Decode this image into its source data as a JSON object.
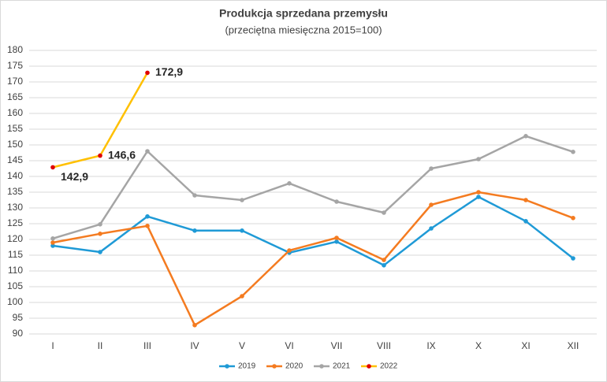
{
  "chart_data": {
    "type": "line",
    "title": "Produkcja sprzedana przemysłu",
    "subtitle": "(przeciętna miesięczna 2015=100)",
    "categories": [
      "I",
      "II",
      "III",
      "IV",
      "V",
      "VI",
      "VII",
      "VIII",
      "IX",
      "X",
      "XI",
      "XII"
    ],
    "series": [
      {
        "name": "2019",
        "color": "#1f9ad6",
        "values": [
          118,
          116,
          127.3,
          122.8,
          122.8,
          115.8,
          119.3,
          111.8,
          123.5,
          133.5,
          125.8,
          114
        ]
      },
      {
        "name": "2020",
        "color": "#f47b20",
        "values": [
          119,
          121.8,
          124.3,
          92.8,
          102,
          116.5,
          120.5,
          113.5,
          131,
          135,
          132.5,
          126.8
        ]
      },
      {
        "name": "2021",
        "color": "#a5a5a5",
        "values": [
          120.3,
          124.8,
          148,
          134,
          132.5,
          137.8,
          132,
          128.5,
          142.5,
          145.5,
          152.8,
          147.8
        ]
      },
      {
        "name": "2022",
        "color": "#ffc000",
        "marker_color": "#e00000",
        "values": [
          142.9,
          146.6,
          172.9,
          null,
          null,
          null,
          null,
          null,
          null,
          null,
          null,
          null
        ],
        "value_labels": [
          "142,9",
          "146,6",
          "172,9",
          null,
          null,
          null,
          null,
          null,
          null,
          null,
          null,
          null
        ]
      }
    ],
    "ylim": [
      90,
      180
    ],
    "yticks": [
      90,
      95,
      100,
      105,
      110,
      115,
      120,
      125,
      130,
      135,
      140,
      145,
      150,
      155,
      160,
      165,
      170,
      175,
      180
    ],
    "grid": true,
    "legend": "bottom"
  }
}
